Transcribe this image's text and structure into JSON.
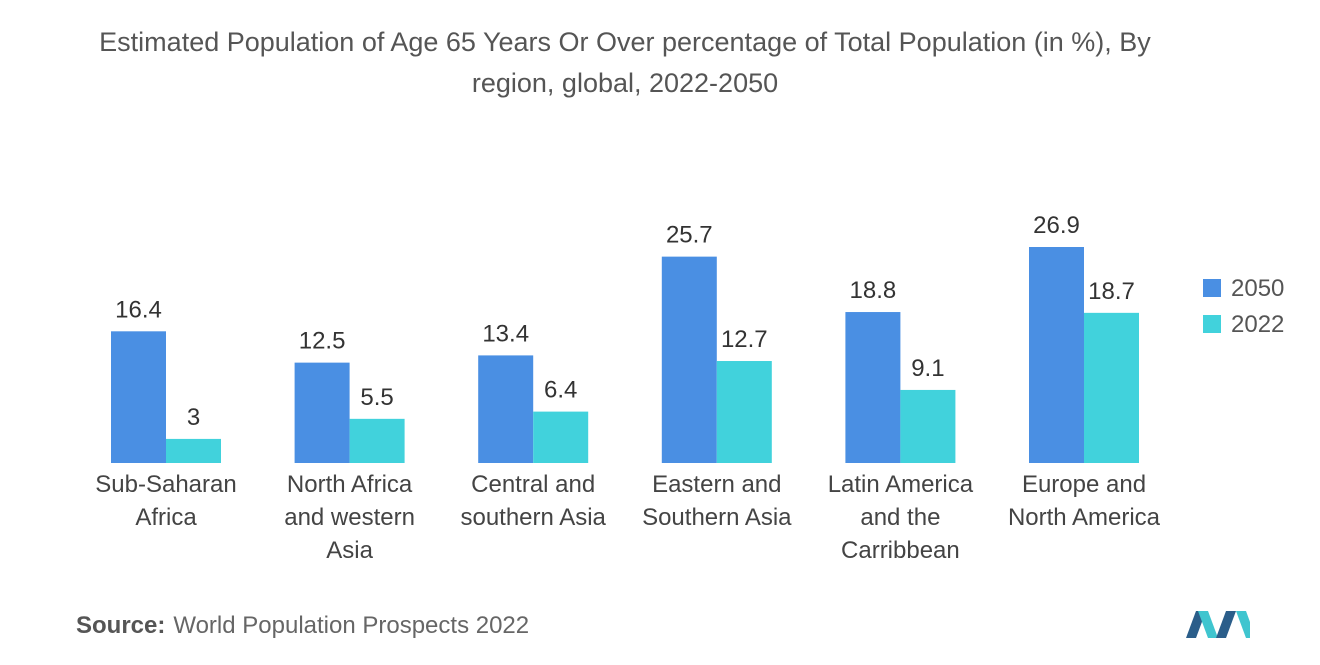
{
  "chart_data": {
    "type": "bar",
    "title": "Estimated Population of Age 65 Years Or Over percentage of Total Population (in %), By region, global, 2022-2050",
    "categories": [
      "Sub-Saharan Africa",
      "North Africa and western Asia",
      "Central and southern Asia",
      "Eastern and Southern Asia",
      "Latin America and the Carribbean",
      "Europe and North America"
    ],
    "series": [
      {
        "name": "2050",
        "color": "#4a8fe3",
        "values": [
          16.4,
          12.5,
          13.4,
          25.7,
          18.8,
          26.9
        ]
      },
      {
        "name": "2022",
        "color": "#41d2dc",
        "values": [
          3,
          5.5,
          6.4,
          12.7,
          9.1,
          18.7
        ]
      }
    ],
    "legend": "right",
    "source_label": "Source:",
    "source": "World Population Prospects 2022"
  }
}
